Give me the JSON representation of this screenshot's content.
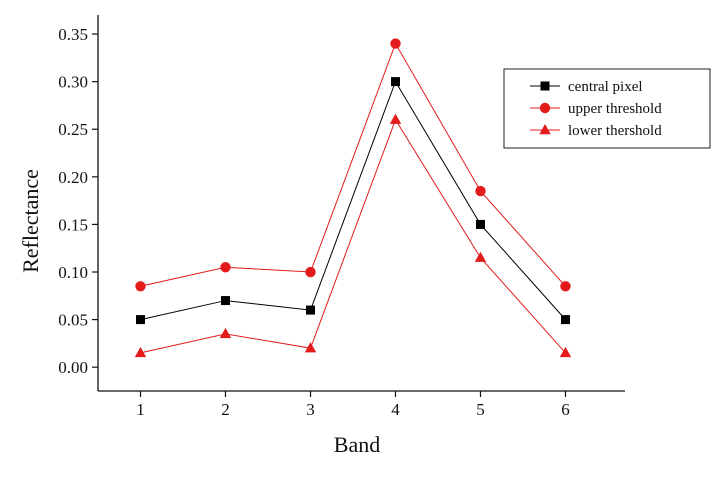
{
  "chart_data": {
    "type": "line",
    "xlabel": "Band",
    "ylabel": "Reflectance",
    "x": [
      1,
      2,
      3,
      4,
      5,
      6
    ],
    "x_tick_labels": [
      "1",
      "2",
      "3",
      "4",
      "5",
      "6"
    ],
    "xlim": [
      0.5,
      6.7
    ],
    "ylim": [
      -0.025,
      0.37
    ],
    "y_ticks": [
      0.0,
      0.05,
      0.1,
      0.15,
      0.2,
      0.25,
      0.3,
      0.35
    ],
    "y_tick_labels": [
      "0.00",
      "0.05",
      "0.10",
      "0.15",
      "0.20",
      "0.25",
      "0.30",
      "0.35"
    ],
    "grid": false,
    "legend_position": "top-right",
    "series": [
      {
        "name": "central pixel",
        "values": [
          0.05,
          0.07,
          0.06,
          0.3,
          0.15,
          0.05
        ],
        "marker": "square",
        "color": "#000000"
      },
      {
        "name": "upper threshold",
        "values": [
          0.085,
          0.105,
          0.1,
          0.34,
          0.185,
          0.085
        ],
        "marker": "circle",
        "color": "#e31b1b"
      },
      {
        "name": "lower thershold",
        "values": [
          0.015,
          0.035,
          0.02,
          0.26,
          0.115,
          0.015
        ],
        "marker": "triangle",
        "color": "#e31b1b"
      }
    ]
  }
}
